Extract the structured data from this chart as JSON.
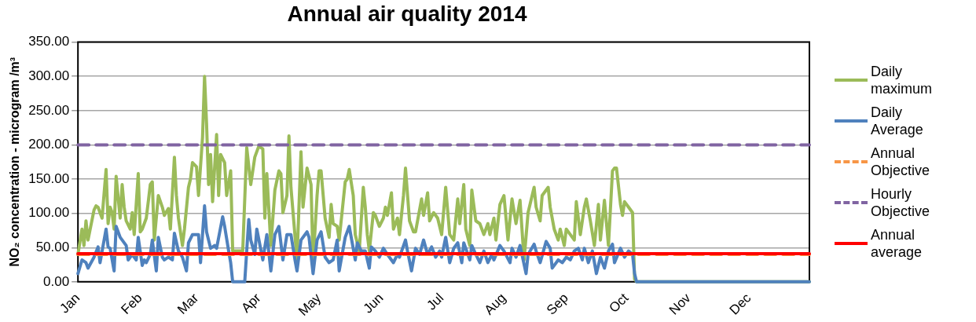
{
  "chart_data": {
    "type": "line",
    "title": "Annual air quality 2014",
    "ylabel": "NO₂ concentration - microgram /m³",
    "xlim": [
      "--01-01",
      "--12-31"
    ],
    "xticks": [
      {
        "value": "--01-01",
        "label": "Jan"
      },
      {
        "value": "--02-01",
        "label": "Feb"
      },
      {
        "value": "--03-01",
        "label": "Mar"
      },
      {
        "value": "--04-01",
        "label": "Apr"
      },
      {
        "value": "--05-01",
        "label": "May"
      },
      {
        "value": "--06-01",
        "label": "Jun"
      },
      {
        "value": "--07-01",
        "label": "Jul"
      },
      {
        "value": "--08-01",
        "label": "Aug"
      },
      {
        "value": "--09-01",
        "label": "Sep"
      },
      {
        "value": "--10-01",
        "label": "Oct"
      },
      {
        "value": "--11-01",
        "label": "Nov"
      },
      {
        "value": "--12-01",
        "label": "Dec"
      }
    ],
    "ylim": [
      0,
      350
    ],
    "yticks": [
      {
        "value": 0,
        "label": "0.00"
      },
      {
        "value": 50,
        "label": "50.00"
      },
      {
        "value": 100,
        "label": "100.00"
      },
      {
        "value": 150,
        "label": "150.00"
      },
      {
        "value": 200,
        "label": "200.00"
      },
      {
        "value": 250,
        "label": "250.00"
      },
      {
        "value": 300,
        "label": "300.00"
      },
      {
        "value": 350,
        "label": "350.00"
      }
    ],
    "grid": "y",
    "legend": "right",
    "marker": "none",
    "series": [
      {
        "name": "Daily maximum",
        "color": "#9bbb59",
        "line_style": "solid",
        "x": [
          "--01-01",
          "--01-03",
          "--01-04",
          "--01-05",
          "--01-06",
          "--01-09",
          "--01-10",
          "--01-11",
          "--01-13",
          "--01-15",
          "--01-16",
          "--01-17",
          "--01-18",
          "--01-19",
          "--01-20",
          "--01-22",
          "--01-23",
          "--01-24",
          "--01-25",
          "--01-27",
          "--01-28",
          "--01-29",
          "--01-31",
          "--02-01",
          "--02-02",
          "--02-04",
          "--02-05",
          "--02-06",
          "--02-07",
          "--02-08",
          "--02-10",
          "--02-12",
          "--02-13",
          "--02-15",
          "--02-16",
          "--02-18",
          "--02-19",
          "--02-20",
          "--02-22",
          "--02-23",
          "--02-25",
          "--02-26",
          "--02-27",
          "--03-01",
          "--03-02",
          "--03-04",
          "--03-05",
          "--03-06",
          "--03-07",
          "--03-08",
          "--03-09",
          "--03-11",
          "--03-12",
          "--03-13",
          "--03-15",
          "--03-16",
          "--03-18",
          "--03-19",
          "--03-22",
          "--03-24",
          "--03-26",
          "--03-28",
          "--03-30",
          "--04-01",
          "--04-03",
          "--04-04",
          "--04-05",
          "--04-07",
          "--04-09",
          "--04-11",
          "--04-12",
          "--04-13",
          "--04-15",
          "--04-16",
          "--04-17",
          "--04-20",
          "--04-22",
          "--04-23",
          "--04-25",
          "--04-27",
          "--04-28",
          "--04-30",
          "--05-01",
          "--05-02",
          "--05-04",
          "--05-06",
          "--05-07",
          "--05-08",
          "--05-10",
          "--05-11",
          "--05-14",
          "--05-15",
          "--05-16",
          "--05-18",
          "--05-19",
          "--05-21",
          "--05-23",
          "--05-24",
          "--05-25",
          "--05-26",
          "--05-28",
          "--05-29",
          "--05-31",
          "--06-02",
          "--06-03",
          "--06-04",
          "--06-06",
          "--06-07",
          "--06-09",
          "--06-10",
          "--06-12",
          "--06-13",
          "--06-15",
          "--06-17",
          "--06-18",
          "--06-21",
          "--06-22",
          "--06-24",
          "--06-25",
          "--06-27",
          "--06-29",
          "--07-01",
          "--07-03",
          "--07-05",
          "--07-07",
          "--07-09",
          "--07-10",
          "--07-12",
          "--07-13",
          "--07-15",
          "--07-16",
          "--07-18",
          "--07-20",
          "--07-22",
          "--07-24",
          "--07-25",
          "--07-27",
          "--07-28",
          "--07-30",
          "--08-01",
          "--08-03",
          "--08-05",
          "--08-07",
          "--08-09",
          "--08-11",
          "--08-13",
          "--08-16",
          "--08-17",
          "--08-19",
          "--08-20",
          "--08-23",
          "--08-24",
          "--08-26",
          "--08-28",
          "--08-29",
          "--08-31",
          "--09-01",
          "--09-03",
          "--09-05",
          "--09-06",
          "--09-08",
          "--09-10",
          "--09-11",
          "--09-13",
          "--09-15",
          "--09-17",
          "--09-18",
          "--09-20",
          "--09-22",
          "--09-24",
          "--09-25",
          "--09-26",
          "--09-28",
          "--09-29",
          "--09-30",
          "--10-02",
          "--10-04",
          "--10-05",
          "--10-06",
          "--12-31"
        ],
        "values": [
          40,
          77,
          53,
          89,
          61,
          105,
          111,
          109,
          93,
          164,
          85,
          109,
          101,
          77,
          154,
          93,
          142,
          109,
          89,
          77,
          101,
          69,
          158,
          73,
          77,
          93,
          117,
          142,
          146,
          61,
          126,
          109,
          97,
          107,
          77,
          182,
          126,
          93,
          53,
          77,
          138,
          150,
          174,
          168,
          126,
          211,
          300,
          231,
          142,
          186,
          117,
          215,
          126,
          186,
          174,
          126,
          162,
          45,
          45,
          45,
          196,
          142,
          182,
          198,
          194,
          93,
          158,
          53,
          134,
          162,
          158,
          101,
          126,
          213,
          138,
          32,
          190,
          109,
          166,
          142,
          28,
          126,
          162,
          162,
          93,
          65,
          113,
          85,
          81,
          61,
          146,
          150,
          164,
          126,
          69,
          45,
          138,
          109,
          69,
          45,
          101,
          97,
          81,
          93,
          109,
          97,
          130,
          77,
          93,
          69,
          126,
          166,
          89,
          73,
          73,
          121,
          97,
          130,
          89,
          101,
          93,
          69,
          138,
          69,
          61,
          121,
          85,
          142,
          77,
          53,
          134,
          89,
          85,
          69,
          85,
          69,
          93,
          61,
          113,
          126,
          61,
          121,
          85,
          119,
          32,
          101,
          138,
          109,
          89,
          126,
          138,
          109,
          77,
          61,
          77,
          53,
          77,
          69,
          61,
          117,
          69,
          109,
          121,
          89,
          53,
          113,
          61,
          119,
          53,
          162,
          166,
          166,
          113,
          97,
          117,
          109,
          101,
          4,
          0,
          0
        ]
      },
      {
        "name": "Daily Average",
        "color": "#4f81bd",
        "line_style": "solid",
        "x": [
          "--01-01",
          "--01-03",
          "--01-05",
          "--01-06",
          "--01-09",
          "--01-11",
          "--01-12",
          "--01-15",
          "--01-16",
          "--01-17",
          "--01-19",
          "--01-20",
          "--01-22",
          "--01-23",
          "--01-25",
          "--01-26",
          "--01-28",
          "--01-30",
          "--01-31",
          "--02-02",
          "--02-03",
          "--02-04",
          "--02-06",
          "--02-07",
          "--02-09",
          "--02-10",
          "--02-12",
          "--02-13",
          "--02-15",
          "--02-17",
          "--02-18",
          "--02-20",
          "--02-22",
          "--02-24",
          "--02-25",
          "--02-27",
          "--03-02",
          "--03-03",
          "--03-05",
          "--03-06",
          "--03-08",
          "--03-10",
          "--03-11",
          "--03-14",
          "--03-15",
          "--03-17",
          "--03-18",
          "--03-19",
          "--03-25",
          "--03-27",
          "--03-28",
          "--03-30",
          "--03-31",
          "--04-03",
          "--04-05",
          "--04-07",
          "--04-09",
          "--04-11",
          "--04-13",
          "--04-15",
          "--04-17",
          "--04-19",
          "--04-20",
          "--04-22",
          "--04-25",
          "--04-26",
          "--04-28",
          "--04-30",
          "--05-02",
          "--05-04",
          "--05-06",
          "--05-08",
          "--05-10",
          "--05-11",
          "--05-14",
          "--05-16",
          "--05-19",
          "--05-20",
          "--05-22",
          "--05-24",
          "--05-26",
          "--05-27",
          "--05-29",
          "--05-31",
          "--06-02",
          "--06-04",
          "--06-07",
          "--06-09",
          "--06-10",
          "--06-13",
          "--06-14",
          "--06-16",
          "--06-18",
          "--06-20",
          "--06-22",
          "--06-24",
          "--06-26",
          "--06-28",
          "--06-30",
          "--07-01",
          "--07-03",
          "--07-05",
          "--07-07",
          "--07-09",
          "--07-11",
          "--07-12",
          "--07-15",
          "--07-16",
          "--07-18",
          "--07-20",
          "--07-22",
          "--07-24",
          "--07-26",
          "--07-27",
          "--07-30",
          "--08-01",
          "--08-04",
          "--08-05",
          "--08-07",
          "--08-09",
          "--08-12",
          "--08-13",
          "--08-16",
          "--08-17",
          "--08-19",
          "--08-22",
          "--08-24",
          "--08-25",
          "--08-28",
          "--08-30",
          "--09-01",
          "--09-03",
          "--09-05",
          "--09-07",
          "--09-09",
          "--09-10",
          "--09-12",
          "--09-14",
          "--09-16",
          "--09-18",
          "--09-20",
          "--09-22",
          "--09-24",
          "--09-25",
          "--09-28",
          "--09-30",
          "--10-02",
          "--10-04",
          "--10-05",
          "--10-06",
          "--12-31"
        ],
        "values": [
          12,
          32,
          28,
          20,
          36,
          51,
          28,
          77,
          51,
          49,
          16,
          81,
          65,
          61,
          53,
          32,
          40,
          32,
          65,
          24,
          32,
          28,
          40,
          61,
          16,
          65,
          36,
          32,
          36,
          32,
          71,
          45,
          36,
          16,
          57,
          69,
          69,
          28,
          111,
          73,
          49,
          53,
          49,
          95,
          81,
          45,
          28,
          0,
          0,
          91,
          61,
          40,
          77,
          32,
          69,
          16,
          69,
          81,
          32,
          69,
          69,
          32,
          16,
          61,
          73,
          65,
          12,
          61,
          73,
          36,
          28,
          32,
          61,
          16,
          65,
          81,
          32,
          57,
          45,
          45,
          20,
          51,
          45,
          36,
          49,
          40,
          28,
          40,
          36,
          61,
          45,
          16,
          49,
          40,
          61,
          40,
          51,
          36,
          45,
          36,
          65,
          28,
          49,
          57,
          28,
          57,
          32,
          53,
          40,
          28,
          45,
          28,
          40,
          32,
          53,
          45,
          28,
          49,
          36,
          53,
          12,
          40,
          55,
          45,
          28,
          59,
          49,
          20,
          32,
          28,
          36,
          32,
          45,
          49,
          32,
          49,
          28,
          45,
          12,
          36,
          20,
          45,
          55,
          28,
          49,
          36,
          45,
          40,
          12,
          0,
          0
        ]
      },
      {
        "name": "Annual Objective",
        "color": "#f79646",
        "line_style": "dashed",
        "x": [
          "--01-01",
          "--12-31"
        ],
        "values": [
          40,
          40
        ]
      },
      {
        "name": "Hourly Objective",
        "color": "#8064a2",
        "line_style": "dashed",
        "x": [
          "--01-01",
          "--12-31"
        ],
        "values": [
          200,
          200
        ]
      },
      {
        "name": "Annual average",
        "color": "#ff0000",
        "line_style": "solid",
        "x": [
          "--01-01",
          "--12-31"
        ],
        "values": [
          41,
          41
        ]
      }
    ]
  }
}
